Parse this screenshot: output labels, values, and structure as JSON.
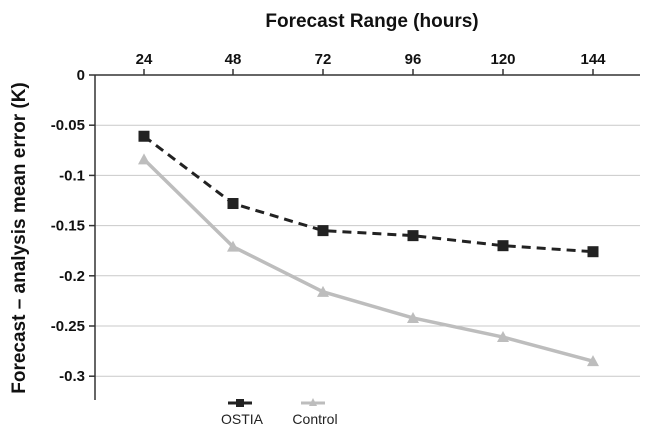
{
  "chart_data": {
    "type": "line",
    "title": "Forecast Range (hours)",
    "xlabel": "Forecast Range (hours)",
    "ylabel": "Forecast – analysis mean error (K)",
    "x": [
      24,
      48,
      72,
      96,
      120,
      144
    ],
    "x_tick_labels": [
      "24",
      "48",
      "72",
      "96",
      "120",
      "144"
    ],
    "x_axis_position": "top",
    "ylim": [
      -0.32,
      0
    ],
    "y_ticks": [
      0,
      -0.05,
      -0.1,
      -0.15,
      -0.2,
      -0.25,
      -0.3
    ],
    "y_tick_labels": [
      "0",
      "-0.05",
      "-0.1",
      "-0.15",
      "-0.2",
      "-0.25",
      "-0.3"
    ],
    "grid": true,
    "legend_position": "bottom",
    "series": [
      {
        "name": "OSTIA",
        "values": [
          -0.061,
          -0.128,
          -0.155,
          -0.16,
          -0.17,
          -0.176
        ],
        "color": "#222222",
        "line_style": "dashed",
        "marker": "square"
      },
      {
        "name": "Control",
        "values": [
          -0.084,
          -0.171,
          -0.216,
          -0.242,
          -0.261,
          -0.285
        ],
        "color": "#bdbdbd",
        "line_style": "solid",
        "marker": "triangle"
      }
    ]
  }
}
